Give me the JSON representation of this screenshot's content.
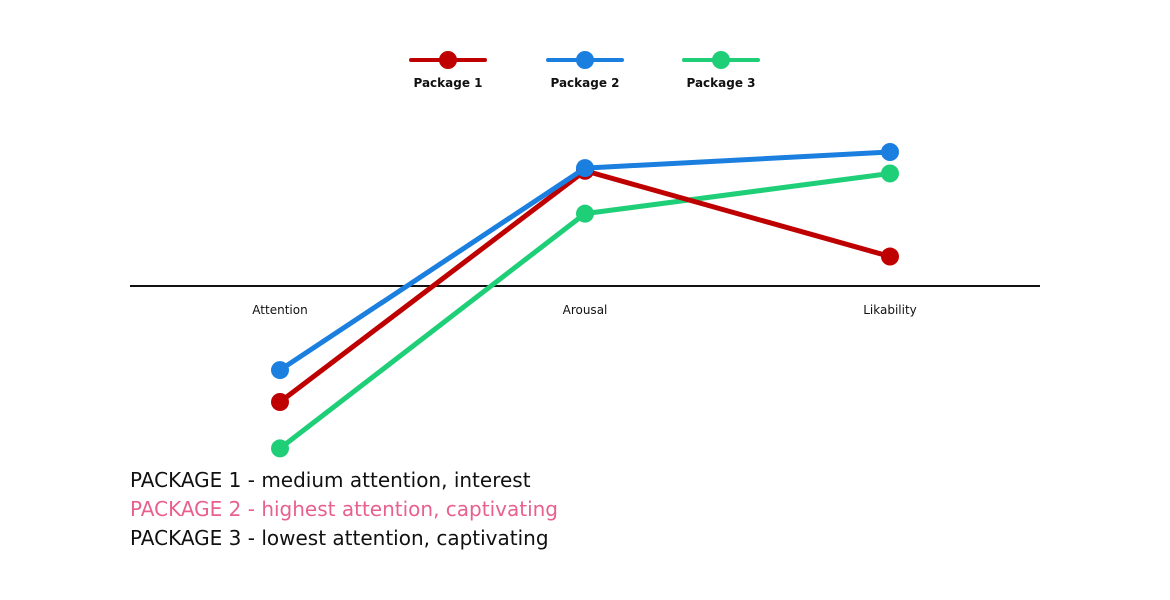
{
  "chart_data": {
    "type": "line",
    "categories": [
      "Attention",
      "Arousal",
      "Likability"
    ],
    "ylim": [
      -1.2,
      1.0
    ],
    "grid": false,
    "legend_position": "top-center",
    "series": [
      {
        "name": "Package 1",
        "color": "#bf0000",
        "values": [
          -0.8,
          0.86,
          0.22
        ]
      },
      {
        "name": "Package 2",
        "color": "#1b7fe0",
        "values": [
          -0.58,
          0.88,
          1.0
        ]
      },
      {
        "name": "Package 3",
        "color": "#1ecf78",
        "values": [
          -1.12,
          0.54,
          0.84
        ]
      }
    ]
  },
  "notes": [
    {
      "text": "PACKAGE 1 - medium attention, interest",
      "color": "#111111"
    },
    {
      "text": "PACKAGE 2 - highest attention, captivating",
      "color": "#e8608f"
    },
    {
      "text": "PACKAGE 3 - lowest attention, captivating",
      "color": "#111111"
    }
  ]
}
